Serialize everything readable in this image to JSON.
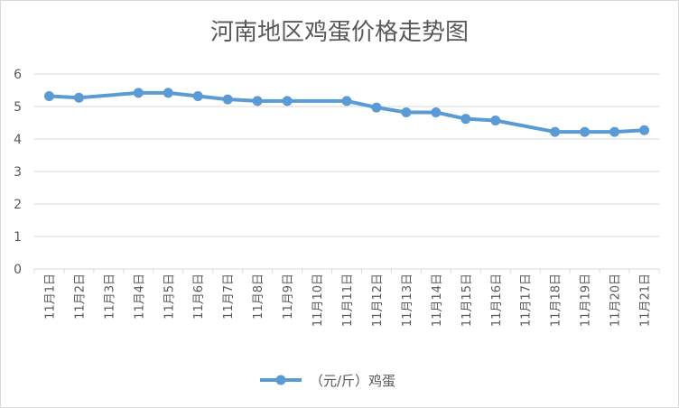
{
  "chart_data": {
    "type": "line",
    "title": "河南地区鸡蛋价格走势图",
    "categories": [
      "11月1日",
      "11月2日",
      "11月3日",
      "11月4日",
      "11月5日",
      "11月6日",
      "11月7日",
      "11月8日",
      "11月9日",
      "11月10日",
      "11月11日",
      "11月12日",
      "11月13日",
      "11月14日",
      "11月15日",
      "11月16日",
      "11月17日",
      "11月18日",
      "11月19日",
      "11月20日",
      "11月21日"
    ],
    "series": [
      {
        "name": "（元/斤）鸡蛋",
        "values": [
          5.32,
          5.27,
          null,
          5.42,
          5.42,
          5.32,
          5.22,
          5.17,
          5.17,
          null,
          5.17,
          4.97,
          4.82,
          4.82,
          4.62,
          4.57,
          null,
          4.22,
          4.22,
          4.22,
          4.27
        ]
      }
    ],
    "ylim": [
      0,
      6
    ],
    "yticks": [
      0,
      1,
      2,
      3,
      4,
      5,
      6
    ],
    "grid": true,
    "legend": "bottom",
    "colors": {
      "line": "#5b9bd5",
      "grid": "#d9d9d9",
      "text": "#595959"
    }
  }
}
